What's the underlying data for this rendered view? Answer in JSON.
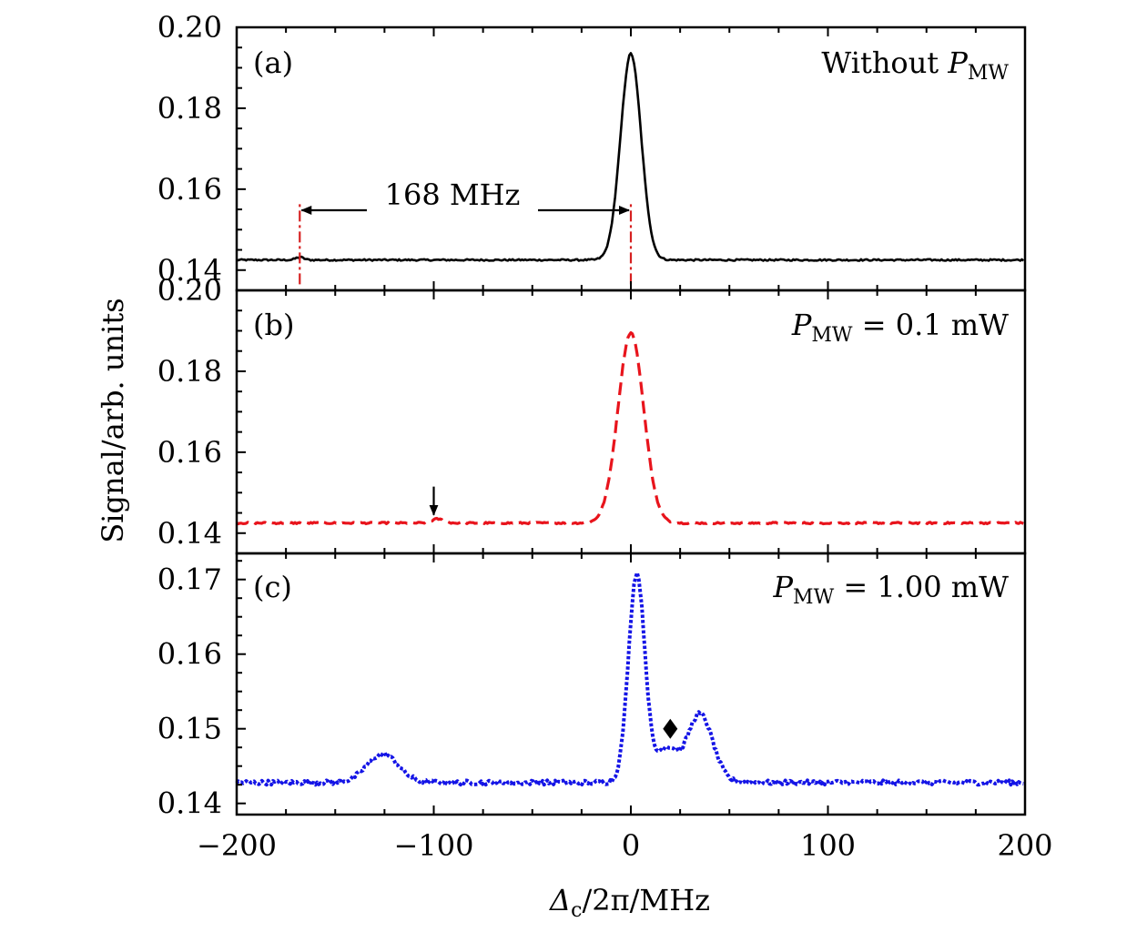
{
  "chart_data": {
    "type": "line",
    "figure": {
      "xlabel_main": "Δ",
      "xlabel_sub": "c",
      "xlabel_rest": "/2π/MHz",
      "ylabel": "Signal/arb. units",
      "xlim": [
        -200,
        200
      ],
      "xticks": [
        -200,
        -100,
        0,
        100,
        200
      ],
      "xtick_labels": [
        "−200",
        "−100",
        "0",
        "100",
        "200"
      ]
    },
    "panels": [
      {
        "id": "a",
        "label": "(a)",
        "annotation_main": "Without ",
        "annotation_italic": "P",
        "annotation_sub": "MW",
        "annotation_rest": "",
        "ylim": [
          0.135,
          0.2
        ],
        "yticks": [
          0.14,
          0.16,
          0.18,
          0.2
        ],
        "ytick_labels": [
          "0.14",
          "0.16",
          "0.18",
          "0.20"
        ],
        "series": {
          "name": "Without P_MW",
          "color": "#000000",
          "style": "solid",
          "baseline": 0.1425,
          "noise": 0.0002,
          "peaks": [
            {
              "center": 0,
              "height": 0.051,
              "width": 5.2
            },
            {
              "center": -168,
              "height": 0.0007,
              "width": 2
            }
          ]
        },
        "markers": {
          "dash_lines_x": [
            -168,
            0
          ],
          "dash_lines_range": [
            0.1365,
            0.1565
          ],
          "dash_color": "#d62020",
          "arrow_y": 0.1548,
          "arrow_text": "168 MHz"
        }
      },
      {
        "id": "b",
        "label": "(b)",
        "annotation_main": "",
        "annotation_italic": "P",
        "annotation_sub": "MW",
        "annotation_rest": " = 0.1 mW",
        "ylim": [
          0.135,
          0.2
        ],
        "yticks": [
          0.14,
          0.16,
          0.18
        ],
        "ytick_labels": [
          "0.14",
          "0.16",
          "0.18"
        ],
        "top_label": "0.20",
        "series": {
          "name": "P_MW = 0.1 mW",
          "color": "#e8141c",
          "style": "dashed",
          "baseline": 0.1425,
          "noise": 0.0002,
          "peaks": [
            {
              "center": 0,
              "height": 0.047,
              "width": 6.5
            },
            {
              "center": -98,
              "height": 0.001,
              "width": 3
            }
          ]
        },
        "markers": {
          "down_arrow_x": -100,
          "down_arrow_from": 0.1515,
          "down_arrow_to": 0.1445
        }
      },
      {
        "id": "c",
        "label": "(c)",
        "annotation_main": "",
        "annotation_italic": "P",
        "annotation_sub": "MW",
        "annotation_rest": " = 1.00 mW",
        "ylim": [
          0.1385,
          0.1735
        ],
        "yticks": [
          0.14,
          0.15,
          0.16,
          0.17
        ],
        "ytick_labels": [
          "0.14",
          "0.15",
          "0.16",
          "0.17"
        ],
        "series": {
          "name": "P_MW = 1.00 mW",
          "color": "#1414e6",
          "style": "dotted",
          "baseline": 0.1428,
          "noise": 0.0003,
          "peaks": [
            {
              "center": 3,
              "height": 0.028,
              "width": 4.2
            },
            {
              "center": 35,
              "height": 0.0092,
              "width": 6.5
            },
            {
              "center": 18,
              "height": 0.0045,
              "width": 5
            },
            {
              "center": -126,
              "height": 0.0038,
              "width": 8
            }
          ]
        },
        "markers": {
          "diamond_x": 20,
          "diamond_y": 0.15
        }
      }
    ]
  }
}
